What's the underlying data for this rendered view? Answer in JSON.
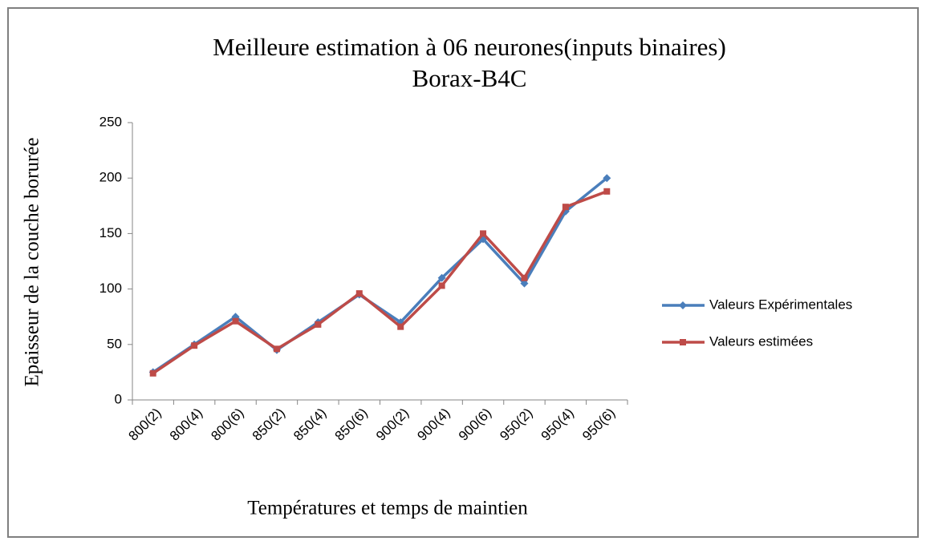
{
  "chart_data": {
    "type": "line",
    "title": "Meilleure estimation à 06 neurones(inputs binaires)",
    "subtitle": "Borax-B4C",
    "x_label": "Températures et temps de maintien",
    "y_label": "Epaisseur de la couche borurée",
    "categories": [
      "800(2)",
      "800(4)",
      "800(6)",
      "850(2)",
      "850(4)",
      "850(6)",
      "900(2)",
      "900(4)",
      "900(6)",
      "950(2)",
      "950(4)",
      "950(6)"
    ],
    "series": [
      {
        "name": "Valeurs Expérimentales",
        "color": "#4a7ebb",
        "marker": "diamond",
        "values": [
          25,
          50,
          75,
          45,
          70,
          95,
          70,
          110,
          145,
          105,
          170,
          200
        ]
      },
      {
        "name": "Valeurs estimées",
        "color": "#be4b48",
        "marker": "square",
        "values": [
          24,
          49,
          71,
          46,
          68,
          96,
          66,
          103,
          150,
          110,
          174,
          188
        ]
      }
    ],
    "ylim": [
      0,
      250
    ],
    "yticks": [
      0,
      50,
      100,
      150,
      200,
      250
    ],
    "grid": false,
    "legend": "right"
  }
}
